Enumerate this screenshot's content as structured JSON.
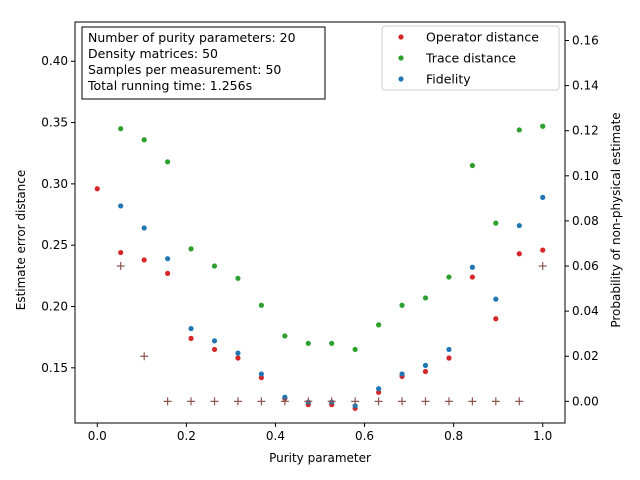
{
  "chart_data": {
    "type": "scatter",
    "title": "",
    "xlabel": "Purity parameter",
    "ylabel": "Estimate error distance",
    "ylabel_right": "Probability of non-physical estimate",
    "xlim": [
      -0.05,
      1.05
    ],
    "ylim": [
      0.105,
      0.432
    ],
    "ylim_right": [
      -0.0096,
      0.1682
    ],
    "x_ticks": [
      0.0,
      0.2,
      0.4,
      0.6,
      0.8,
      1.0
    ],
    "x_tick_labels": [
      "0.0",
      "0.2",
      "0.4",
      "0.6",
      "0.8",
      "1.0"
    ],
    "y_ticks": [
      0.15,
      0.2,
      0.25,
      0.3,
      0.35,
      0.4
    ],
    "y_tick_labels": [
      "0.15",
      "0.20",
      "0.25",
      "0.30",
      "0.35",
      "0.40"
    ],
    "y_ticks_right": [
      0.0,
      0.02,
      0.04,
      0.06,
      0.08,
      0.1,
      0.12,
      0.14,
      0.16
    ],
    "y_tick_labels_right": [
      "0.00",
      "0.02",
      "0.04",
      "0.06",
      "0.08",
      "0.10",
      "0.12",
      "0.14",
      "0.16"
    ],
    "grid": false,
    "legend_position": "top-right",
    "info_box": [
      "Number of purity parameters: 20",
      "Density matrices: 50",
      "Samples per measurement: 50",
      "Total running time:  1.256s"
    ],
    "series": [
      {
        "name": "Operator distance",
        "color": "#d62728",
        "marker": "dot",
        "axis": "left",
        "x": [
          0.0,
          0.0526,
          0.1053,
          0.1579,
          0.2105,
          0.2632,
          0.3158,
          0.3684,
          0.4211,
          0.4737,
          0.5263,
          0.5789,
          0.6316,
          0.6842,
          0.7368,
          0.7895,
          0.8421,
          0.8947,
          0.9474,
          1.0
        ],
        "y": [
          0.296,
          0.244,
          0.238,
          0.227,
          0.174,
          0.165,
          0.158,
          0.142,
          0.125,
          0.12,
          0.12,
          0.117,
          0.13,
          0.143,
          0.147,
          0.158,
          0.224,
          0.19,
          0.243,
          0.246
        ]
      },
      {
        "name": "Trace distance",
        "color": "#2ca02c",
        "marker": "dot",
        "axis": "left",
        "x": [
          0.0526,
          0.1053,
          0.1579,
          0.2105,
          0.2632,
          0.3158,
          0.3684,
          0.4211,
          0.4737,
          0.5263,
          0.5789,
          0.6316,
          0.6842,
          0.7368,
          0.7895,
          0.8421,
          0.8947,
          0.9474,
          1.0
        ],
        "y": [
          0.345,
          0.336,
          0.318,
          0.247,
          0.233,
          0.223,
          0.201,
          0.176,
          0.17,
          0.17,
          0.165,
          0.185,
          0.201,
          0.207,
          0.224,
          0.315,
          0.268,
          0.344,
          0.347
        ]
      },
      {
        "name": "Fidelity",
        "color": "#1f77b4",
        "marker": "dot",
        "axis": "left",
        "x": [
          0.0526,
          0.1053,
          0.1579,
          0.2105,
          0.2632,
          0.3158,
          0.3684,
          0.4211,
          0.4737,
          0.5263,
          0.5789,
          0.6316,
          0.6842,
          0.7368,
          0.7895,
          0.8421,
          0.8947,
          0.9474,
          1.0
        ],
        "y": [
          0.282,
          0.264,
          0.239,
          0.182,
          0.172,
          0.162,
          0.145,
          0.126,
          0.122,
          0.122,
          0.119,
          0.133,
          0.145,
          0.152,
          0.165,
          0.232,
          0.206,
          0.266,
          0.289
        ]
      },
      {
        "color": "#8c564b",
        "marker": "plus",
        "axis": "right",
        "x": [
          0.0526,
          0.1053,
          0.1579,
          0.2105,
          0.2632,
          0.3158,
          0.3684,
          0.4211,
          0.4737,
          0.5263,
          0.5789,
          0.6316,
          0.6842,
          0.7368,
          0.7895,
          0.8421,
          0.8947,
          0.9474,
          1.0
        ],
        "y": [
          0.06,
          0.02,
          0.0,
          0.0,
          0.0,
          0.0,
          0.0,
          0.0,
          0.0,
          0.0,
          0.0,
          0.0,
          0.0,
          0.0,
          0.0,
          0.0,
          0.0,
          0.0,
          0.06
        ]
      }
    ]
  }
}
